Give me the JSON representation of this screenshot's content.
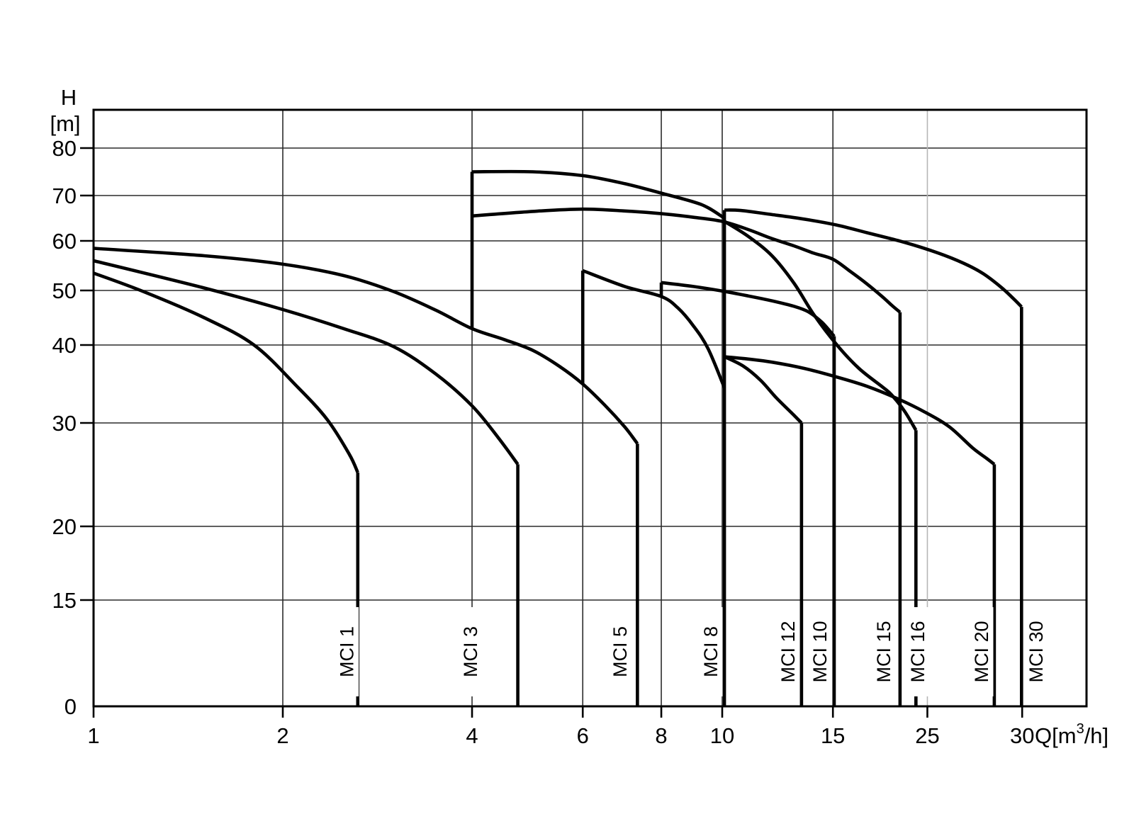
{
  "figure": {
    "kind": "pump-family-performance-chart",
    "background": "#ffffff",
    "stroke_color": "#000000",
    "grid_color": "#2b2b2b",
    "light_grid_color": "#b5b5b5"
  },
  "chart_data": {
    "type": "line",
    "title": "",
    "xlabel": "Q[m3/h]",
    "x_unit_parts": {
      "pre": "Q[m",
      "sup": "3",
      "post": "/h]"
    },
    "ylabel_line1": "H",
    "ylabel_line2": "[m]",
    "x_axis": {
      "type": "log",
      "min": 1,
      "max": 38
    },
    "y_axis": {
      "ticks": [
        0,
        15,
        20,
        30,
        40,
        50,
        60,
        70,
        80
      ],
      "min": 0,
      "max": 86
    },
    "x_ticks": [
      {
        "label": "1",
        "q": 1,
        "grid": false
      },
      {
        "label": "2",
        "q": 2,
        "grid": true
      },
      {
        "label": "4",
        "q": 4,
        "grid": true
      },
      {
        "label": "6",
        "q": 6,
        "grid": true
      },
      {
        "label": "8",
        "q": 8,
        "grid": true
      },
      {
        "label": "10",
        "q": 10,
        "grid": true
      },
      {
        "label": "15",
        "q": 15,
        "grid": true
      },
      {
        "label": "25",
        "q": 25,
        "pos_q": 21.2,
        "grid": true,
        "light": true
      },
      {
        "label": "30",
        "q": 30,
        "grid": false
      }
    ],
    "legend_position": "labels-on-plot",
    "grid": true,
    "series": [
      {
        "name": "MCI 1",
        "segments": [
          [
            [
              1,
              53.5
            ],
            [
              1.2,
              49.8
            ],
            [
              1.5,
              45
            ],
            [
              1.8,
              40
            ],
            [
              2.1,
              34.8
            ],
            [
              2.35,
              30.5
            ],
            [
              2.55,
              27
            ],
            [
              2.632,
              25.2
            ]
          ]
        ],
        "risers": [],
        "terminal": {
          "q": 2.632,
          "top_h": 25.2
        },
        "label": {
          "text": "MCI 1",
          "q": 2.53
        }
      },
      {
        "name": "MCI 3",
        "segments": [
          [
            [
              1,
              56
            ],
            [
              1.5,
              50.5
            ],
            [
              2,
              46.5
            ],
            [
              2.5,
              43
            ],
            [
              3,
              39.8
            ],
            [
              3.5,
              36.3
            ],
            [
              4,
              32.2
            ],
            [
              4.4,
              28.6
            ],
            [
              4.73,
              26
            ]
          ]
        ],
        "risers": [],
        "terminal": {
          "q": 4.73,
          "top_h": 26
        },
        "label": {
          "text": "MCI 3",
          "q": 3.98
        }
      },
      {
        "name": "MCI 5",
        "segments": [
          [
            [
              1,
              58.5
            ],
            [
              1.5,
              57
            ],
            [
              2,
              55.3
            ],
            [
              2.5,
              53
            ],
            [
              3,
              49.8
            ],
            [
              3.5,
              46.4
            ],
            [
              4,
              43
            ],
            [
              4.5,
              41
            ],
            [
              5,
              39.3
            ],
            [
              5.5,
              37.3
            ],
            [
              6,
              35
            ],
            [
              6.5,
              32.3
            ],
            [
              7,
              29.6
            ],
            [
              7.33,
              28
            ]
          ]
        ],
        "risers": [],
        "terminal": {
          "q": 7.33,
          "top_h": 28
        },
        "label": {
          "text": "MCI 5",
          "q": 6.88
        }
      },
      {
        "name": "MCI 8",
        "segments": [
          [
            [
              4,
              75
            ],
            [
              5,
              75
            ],
            [
              6,
              74.2
            ],
            [
              7,
              72.5
            ],
            [
              8,
              70.5
            ],
            [
              9,
              68.6
            ],
            [
              9.5,
              67.3
            ],
            [
              10.08,
              65
            ]
          ]
        ],
        "risers": [
          {
            "q": 4,
            "from_h": 43,
            "to_h": 75
          }
        ],
        "terminal": {
          "q": 10.08,
          "top_h": 65
        },
        "label": {
          "text": "MCI 8",
          "q": 9.59
        }
      },
      {
        "name": "MCI 12",
        "segments": [
          [
            [
              6,
              54
            ],
            [
              7,
              50.8
            ],
            [
              8,
              48.9
            ],
            [
              8.5,
              46.8
            ],
            [
              9,
              43.5
            ],
            [
              9.5,
              39.5
            ],
            [
              10.08,
              34.5
            ]
          ],
          [
            [
              10.08,
              38.5
            ],
            [
              10.8,
              37.3
            ],
            [
              11.5,
              35.5
            ],
            [
              12.2,
              33.2
            ],
            [
              13,
              31
            ],
            [
              13.37,
              30
            ]
          ]
        ],
        "risers": [
          {
            "q": 6,
            "from_h": 35,
            "to_h": 54
          }
        ],
        "terminal": {
          "q": 13.37,
          "top_h": 30
        },
        "label": {
          "text": "MCI 12",
          "q": 12.73
        }
      },
      {
        "name": "MCI 10",
        "segments": [
          [
            [
              8,
              51.6
            ],
            [
              9,
              50.8
            ],
            [
              10,
              49.9
            ],
            [
              11,
              49
            ],
            [
              12,
              48.1
            ],
            [
              13,
              47.1
            ],
            [
              13.7,
              46.1
            ],
            [
              14.4,
              44.2
            ],
            [
              15.07,
              41.6
            ]
          ]
        ],
        "risers": [
          {
            "q": 8,
            "from_h": 48.9,
            "to_h": 51.6
          }
        ],
        "terminal": {
          "q": 15.07,
          "top_h": 41.6
        },
        "label": {
          "text": "MCI 10",
          "q": 14.31
        }
      },
      {
        "name": "MCI 15",
        "segments": [
          [
            [
              4,
              65.5
            ],
            [
              5,
              66.5
            ],
            [
              6,
              67
            ],
            [
              7,
              66.6
            ],
            [
              8,
              66
            ],
            [
              9,
              65.2
            ],
            [
              10,
              64.3
            ],
            [
              11,
              62.5
            ],
            [
              12,
              60.5
            ],
            [
              13,
              59
            ],
            [
              14,
              57.5
            ],
            [
              15,
              56.3
            ],
            [
              16,
              53.8
            ],
            [
              17,
              51.3
            ],
            [
              18,
              48.8
            ],
            [
              18.6,
              47.3
            ],
            [
              19.18,
              46
            ]
          ]
        ],
        "risers": [],
        "terminal": {
          "q": 19.18,
          "top_h": 46
        },
        "label": {
          "text": "MCI 15",
          "q": 18.07
        }
      },
      {
        "name": "MCI 16",
        "segments": [
          [
            [
              10.08,
              64.3
            ],
            [
              11,
              61
            ],
            [
              12,
              57
            ],
            [
              13,
              51.5
            ],
            [
              14,
              45.5
            ],
            [
              15.2,
              40.1
            ],
            [
              16.5,
              37
            ],
            [
              18,
              34.6
            ],
            [
              18.6,
              33.6
            ],
            [
              19.5,
              31.5
            ],
            [
              20.33,
              29.3
            ]
          ]
        ],
        "risers": [],
        "terminal": {
          "q": 20.33,
          "top_h": 29.3
        },
        "label": {
          "text": "MCI 16",
          "q": 20.48
        }
      },
      {
        "name": "MCI 20",
        "segments": [
          [
            [
              10.08,
              38.5
            ],
            [
              11,
              38.2
            ],
            [
              12,
              37.8
            ],
            [
              13.5,
              37
            ],
            [
              15.2,
              35.9
            ],
            [
              17,
              34.7
            ],
            [
              18.9,
              33.2
            ],
            [
              21,
              31.4
            ],
            [
              23,
              29.6
            ],
            [
              25,
              27.6
            ],
            [
              26.3,
              26.6
            ],
            [
              27.09,
              26
            ]
          ]
        ],
        "risers": [],
        "terminal": {
          "q": 27.09,
          "top_h": 26
        },
        "label": {
          "text": "MCI 20",
          "q": 25.86
        }
      },
      {
        "name": "MCI 30",
        "segments": [
          [
            [
              10.08,
              66.8
            ],
            [
              10.7,
              66.7
            ],
            [
              12,
              65.8
            ],
            [
              13.5,
              64.8
            ],
            [
              15.2,
              63.5
            ],
            [
              17,
              61.8
            ],
            [
              19.5,
              59.7
            ],
            [
              22,
              57.6
            ],
            [
              24.2,
              55.5
            ],
            [
              26,
              53.4
            ],
            [
              27.8,
              50.6
            ],
            [
              29,
              48.6
            ],
            [
              29.93,
              47
            ]
          ]
        ],
        "risers": [
          {
            "q": 10.08,
            "from_h": 65,
            "to_h": 66.8
          }
        ],
        "terminal": {
          "q": 29.93,
          "top_h": 47
        },
        "label": {
          "text": "MCI 30",
          "q": 31.6
        }
      }
    ]
  }
}
